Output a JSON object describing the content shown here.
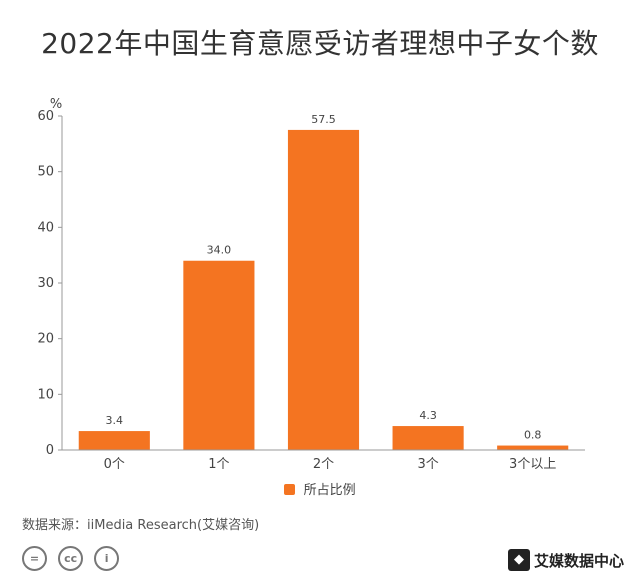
{
  "title": "2022年中国生育意愿受访者理想中子女个数",
  "chart_data": {
    "type": "bar",
    "title": "2022年中国生育意愿受访者理想中子女个数",
    "ylabel": "%",
    "xlabel": "",
    "categories": [
      "0个",
      "1个",
      "2个",
      "3个",
      "3个以上"
    ],
    "series": [
      {
        "name": "所占比例",
        "values": [
          3.4,
          34.0,
          57.5,
          4.3,
          0.8
        ]
      }
    ],
    "value_labels": [
      "3.4",
      "34.0",
      "57.5",
      "4.3",
      "0.8"
    ],
    "ylim": [
      0,
      60
    ],
    "yticks": [
      0,
      10,
      20,
      30,
      40,
      50,
      60
    ],
    "grid": false,
    "legend": "bottom",
    "color": "#F47421"
  },
  "legend_label": "所占比例",
  "source": "数据来源：iiMedia Research(艾媒咨询)",
  "brand": "艾媒数据中心",
  "cc_icons": [
    "=",
    "cc",
    "i"
  ]
}
